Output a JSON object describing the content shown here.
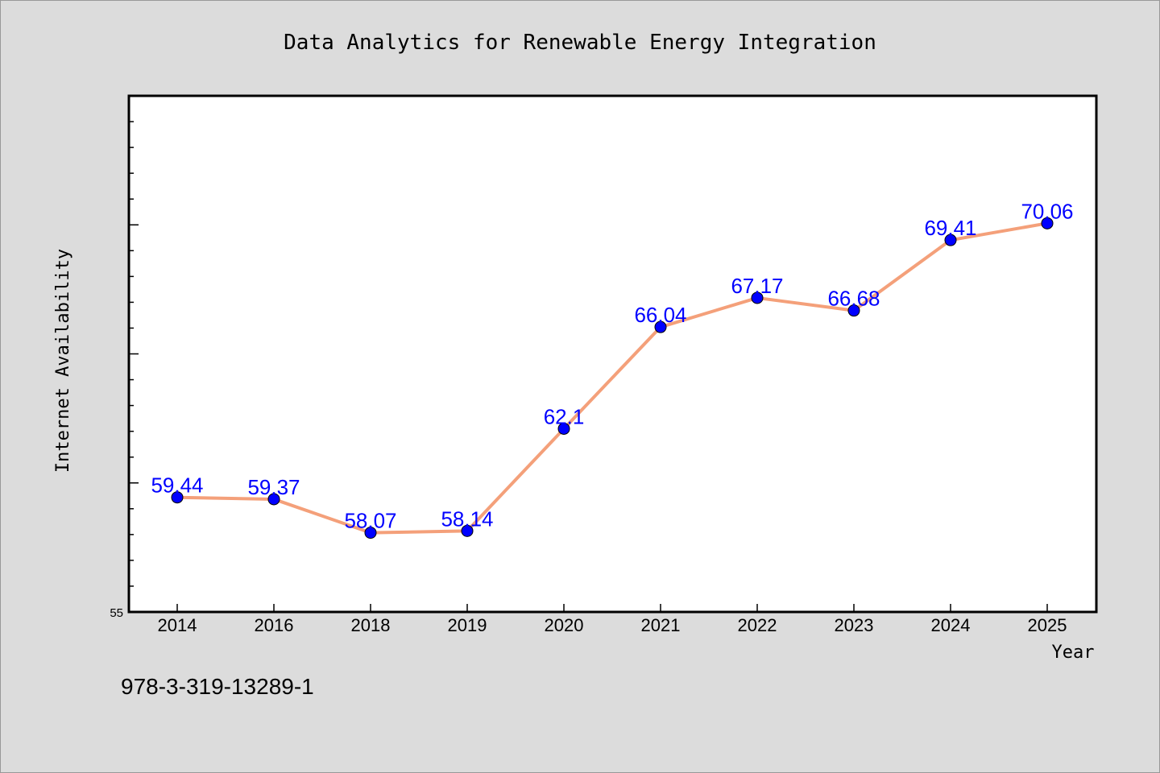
{
  "footer": {
    "code": "978-3-319-13289-1"
  },
  "colors": {
    "background": "#dcdcdc",
    "line": "#f4a07a",
    "marker": "#0000ff",
    "label": "#0000ff"
  },
  "chart_data": {
    "type": "line",
    "title": "Data Analytics for Renewable Energy Integration",
    "xlabel": "Year",
    "ylabel": "Internet Availability",
    "categories": [
      "2014",
      "2016",
      "2018",
      "2019",
      "2020",
      "2021",
      "2022",
      "2023",
      "2024",
      "2025"
    ],
    "series": [
      {
        "values": [
          59.44,
          59.37,
          58.07,
          58.14,
          62.1,
          66.04,
          67.17,
          66.68,
          69.41,
          70.06
        ]
      }
    ],
    "data_labels": [
      "59.44",
      "59.37",
      "58.07",
      "58.14",
      "62.1",
      "66.04",
      "67.17",
      "66.68",
      "69.41",
      "70.06"
    ],
    "ylim": [
      55,
      75
    ],
    "yticks_labeled": [
      "55"
    ],
    "grid": false,
    "legend": "none"
  }
}
